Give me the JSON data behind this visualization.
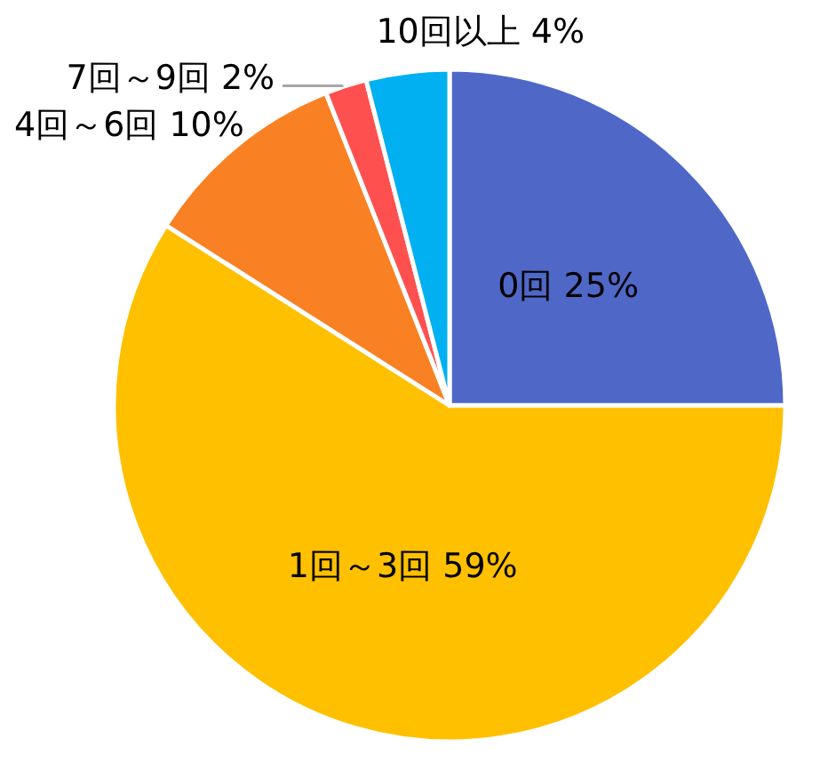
{
  "chart_data": {
    "type": "pie",
    "categories": [
      "0回",
      "1回～3回",
      "4回～6回",
      "7回～9回",
      "10回以上"
    ],
    "values": [
      25,
      59,
      10,
      2,
      4
    ],
    "colors": [
      "#4F68C8",
      "#FFC000",
      "#F98124",
      "#FF5050",
      "#00B0F0"
    ],
    "value_labels": [
      "25%",
      "59%",
      "10%",
      "2%",
      "4%"
    ]
  }
}
